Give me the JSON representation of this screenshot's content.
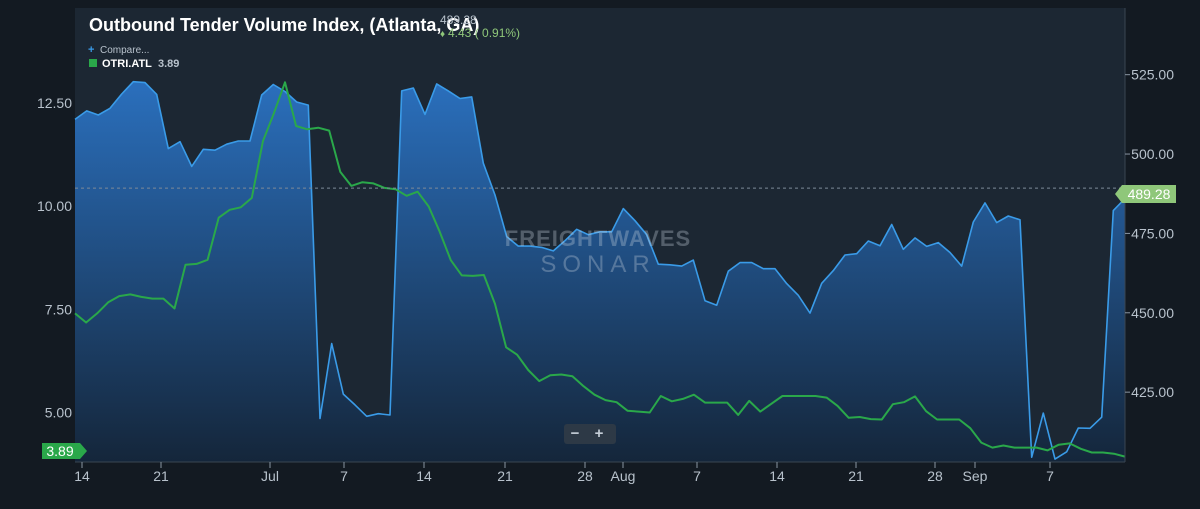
{
  "header": {
    "title": "Outbound Tender Volume Index, (Atlanta, GA)",
    "value": "489.28",
    "change_arrow": "♦",
    "change": "4.43 ( 0.91%)",
    "compare_icon": "+",
    "compare_label": "Compare...",
    "series_label": "OTRI.ATL",
    "series_value": "3.89"
  },
  "watermark": {
    "line1": "FREIGHTWAVES",
    "line2": "SONAR"
  },
  "zoom": {
    "minus": "−",
    "plus": "+"
  },
  "badges": {
    "right_value": "489.28",
    "left_value": "3.89"
  },
  "colors": {
    "background": "#1c2733",
    "grid": "#2a3542",
    "otvi_line": "#3a9be8",
    "otri_line": "#2aa84a",
    "badge_right": "#8fc77a",
    "badge_left": "#2aa84a",
    "change_positive": "#8fc77a"
  },
  "chart_data": {
    "type": "line",
    "title": "Outbound Tender Volume Index, (Atlanta, GA)",
    "x_ticks": [
      "14",
      "21",
      "Jul",
      "7",
      "14",
      "21",
      "28",
      "Aug",
      "7",
      "14",
      "21",
      "28",
      "Sep",
      "7"
    ],
    "left_axis": {
      "ticks": [
        "5.00",
        "7.50",
        "10.00",
        "12.50"
      ],
      "ylim": [
        3.8,
        14.8
      ]
    },
    "right_axis": {
      "ticks": [
        "425.00",
        "450.00",
        "475.00",
        "500.00",
        "525.00"
      ],
      "ylim": [
        403,
        546
      ]
    },
    "series": [
      {
        "name": "Outbound Tender Volume Index, (Atlanta, GA)",
        "axis": "right",
        "style": "area",
        "values": [
          510.9,
          513.6,
          512.3,
          514.4,
          518.9,
          522.8,
          522.5,
          518.8,
          501.7,
          503.9,
          496.1,
          501.5,
          501.2,
          503.1,
          504.1,
          504.1,
          518.6,
          521.9,
          519.7,
          516.4,
          515.4,
          416.7,
          440.3,
          424.4,
          421.0,
          417.4,
          418.2,
          417.8,
          519.9,
          520.8,
          512.5,
          522.1,
          519.9,
          517.5,
          518.0,
          497.1,
          487.1,
          474.0,
          471.0,
          471.0,
          470.6,
          469.5,
          472.7,
          476.3,
          474.6,
          475.5,
          475.5,
          482.8,
          479.0,
          474.6,
          465.3,
          465.1,
          464.7,
          466.6,
          453.8,
          452.4,
          463.1,
          465.8,
          465.8,
          463.9,
          463.9,
          459.2,
          455.5,
          449.9,
          459.3,
          463.3,
          468.2,
          468.6,
          472.6,
          471.1,
          477.8,
          470.0,
          473.6,
          470.9,
          472.1,
          469.0,
          464.7,
          478.6,
          484.6,
          478.4,
          480.5,
          479.3,
          404.5,
          418.4,
          403.9,
          406.2,
          413.7,
          413.6,
          417.1,
          482.2,
          486.0
        ],
        "last_value": 489.28
      },
      {
        "name": "OTRI.ATL",
        "axis": "left",
        "style": "line",
        "values": [
          7.4,
          7.18,
          7.4,
          7.67,
          7.82,
          7.86,
          7.8,
          7.76,
          7.76,
          7.52,
          8.58,
          8.6,
          8.7,
          9.72,
          9.91,
          9.97,
          10.2,
          11.57,
          12.25,
          13.0,
          11.94,
          11.86,
          11.9,
          11.83,
          10.83,
          10.49,
          10.58,
          10.55,
          10.44,
          10.41,
          10.25,
          10.35,
          9.99,
          9.38,
          8.69,
          8.32,
          8.31,
          8.33,
          7.63,
          6.58,
          6.4,
          6.03,
          5.76,
          5.9,
          5.92,
          5.88,
          5.64,
          5.43,
          5.3,
          5.25,
          5.04,
          5.02,
          5.0,
          5.4,
          5.27,
          5.33,
          5.43,
          5.24,
          5.24,
          5.24,
          4.94,
          5.28,
          5.02,
          5.21,
          5.4,
          5.4,
          5.4,
          5.4,
          5.36,
          5.16,
          4.87,
          4.89,
          4.84,
          4.83,
          5.2,
          5.25,
          5.39,
          5.03,
          4.83,
          4.83,
          4.83,
          4.62,
          4.27,
          4.15,
          4.2,
          4.15,
          4.15,
          4.15,
          4.08,
          4.22,
          4.25,
          4.12,
          4.03,
          4.03,
          4.0,
          3.93
        ],
        "last_value": 3.89
      }
    ],
    "grid": false,
    "legend_position": "top-left"
  }
}
